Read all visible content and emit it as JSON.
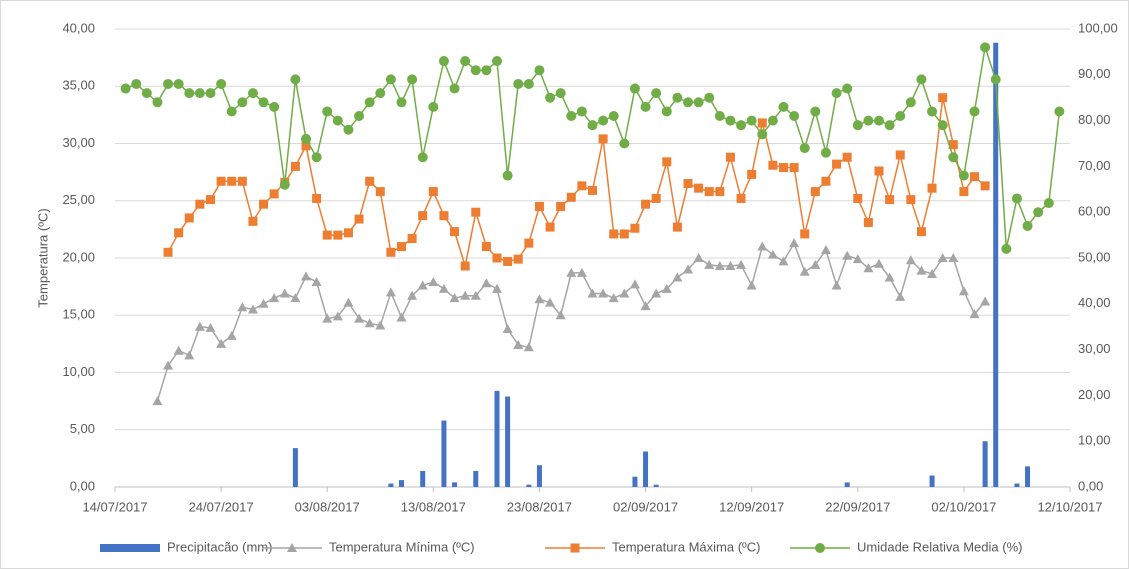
{
  "chart_data": {
    "type": "combo",
    "y_label": "Temperatura (ºC)",
    "x": [
      "14/07/2017",
      "15/07/2017",
      "16/07/2017",
      "17/07/2017",
      "18/07/2017",
      "19/07/2017",
      "20/07/2017",
      "21/07/2017",
      "22/07/2017",
      "23/07/2017",
      "24/07/2017",
      "25/07/2017",
      "26/07/2017",
      "27/07/2017",
      "28/07/2017",
      "29/07/2017",
      "30/07/2017",
      "31/07/2017",
      "01/08/2017",
      "02/08/2017",
      "03/08/2017",
      "04/08/2017",
      "05/08/2017",
      "06/08/2017",
      "07/08/2017",
      "08/08/2017",
      "09/08/2017",
      "10/08/2017",
      "11/08/2017",
      "12/08/2017",
      "13/08/2017",
      "14/08/2017",
      "15/08/2017",
      "16/08/2017",
      "17/08/2017",
      "18/08/2017",
      "19/08/2017",
      "20/08/2017",
      "21/08/2017",
      "22/08/2017",
      "23/08/2017",
      "24/08/2017",
      "25/08/2017",
      "26/08/2017",
      "27/08/2017",
      "28/08/2017",
      "29/08/2017",
      "30/08/2017",
      "31/08/2017",
      "01/09/2017",
      "02/09/2017",
      "03/09/2017",
      "04/09/2017",
      "05/09/2017",
      "06/09/2017",
      "07/09/2017",
      "08/09/2017",
      "09/09/2017",
      "10/09/2017",
      "11/09/2017",
      "12/09/2017",
      "13/09/2017",
      "14/09/2017",
      "15/09/2017",
      "16/09/2017",
      "17/09/2017",
      "18/09/2017",
      "19/09/2017",
      "20/09/2017",
      "21/09/2017",
      "22/09/2017",
      "23/09/2017",
      "24/09/2017",
      "25/09/2017",
      "26/09/2017",
      "27/09/2017",
      "28/09/2017",
      "29/09/2017",
      "30/09/2017",
      "01/10/2017",
      "02/10/2017",
      "03/10/2017",
      "04/10/2017",
      "05/10/2017",
      "06/10/2017",
      "07/10/2017",
      "08/10/2017",
      "09/10/2017",
      "10/10/2017",
      "11/10/2017",
      "12/10/2017"
    ],
    "xlim": [
      "14/07/2017",
      "12/10/2017"
    ],
    "xticks": [
      "14/07/2017",
      "24/07/2017",
      "03/08/2017",
      "13/08/2017",
      "23/08/2017",
      "02/09/2017",
      "12/09/2017",
      "22/09/2017",
      "02/10/2017",
      "12/10/2017"
    ],
    "ylim": [
      0,
      40
    ],
    "yticks": [
      {
        "value": 0,
        "label": "0,00"
      },
      {
        "value": 5,
        "label": "5,00"
      },
      {
        "value": 10,
        "label": "10,00"
      },
      {
        "value": 15,
        "label": "15,00"
      },
      {
        "value": 20,
        "label": "20,00"
      },
      {
        "value": 25,
        "label": "25,00"
      },
      {
        "value": 30,
        "label": "30,00"
      },
      {
        "value": 35,
        "label": "35,00"
      },
      {
        "value": 40,
        "label": "40,00"
      }
    ],
    "y2lim": [
      0,
      100
    ],
    "y2ticks": [
      {
        "value": 0,
        "label": "0,00"
      },
      {
        "value": 10,
        "label": "10,00"
      },
      {
        "value": 20,
        "label": "20,00"
      },
      {
        "value": 30,
        "label": "30,00"
      },
      {
        "value": 40,
        "label": "40,00"
      },
      {
        "value": 50,
        "label": "50,00"
      },
      {
        "value": 60,
        "label": "60,00"
      },
      {
        "value": 70,
        "label": "70,00"
      },
      {
        "value": 80,
        "label": "80,00"
      },
      {
        "value": 90,
        "label": "90,00"
      },
      {
        "value": 100,
        "label": "100,00"
      }
    ],
    "grid": true,
    "legend": "bottom",
    "series": [
      {
        "name": "Precipitacão (mm)",
        "type": "bar",
        "color": "#4472c4",
        "axis": "y",
        "values": [
          null,
          null,
          null,
          null,
          null,
          null,
          null,
          null,
          null,
          null,
          null,
          null,
          null,
          null,
          null,
          null,
          null,
          3.4,
          null,
          null,
          null,
          null,
          null,
          null,
          null,
          null,
          0.3,
          0.6,
          null,
          1.4,
          null,
          5.8,
          0.4,
          null,
          1.4,
          null,
          8.4,
          7.9,
          null,
          0.2,
          1.9,
          null,
          null,
          null,
          null,
          null,
          null,
          null,
          null,
          0.9,
          3.1,
          0.2,
          null,
          null,
          null,
          null,
          null,
          null,
          null,
          null,
          null,
          null,
          null,
          null,
          null,
          null,
          null,
          null,
          null,
          0.4,
          null,
          null,
          null,
          null,
          null,
          null,
          null,
          1.0,
          null,
          null,
          null,
          null,
          4.0,
          38.8,
          null,
          0.3,
          1.8,
          null,
          null,
          null,
          null
        ]
      },
      {
        "name": "Temperatura Mínima (ºC)",
        "type": "line",
        "marker": "triangle",
        "color": "#a5a5a5",
        "axis": "y",
        "values": [
          null,
          null,
          null,
          null,
          7.5,
          10.6,
          11.9,
          11.5,
          14.0,
          13.9,
          12.5,
          13.2,
          15.7,
          15.5,
          16.0,
          16.5,
          16.9,
          16.5,
          18.4,
          17.9,
          14.7,
          14.9,
          16.1,
          14.7,
          14.3,
          14.1,
          17.0,
          14.8,
          16.7,
          17.6,
          17.9,
          17.3,
          16.5,
          16.7,
          16.7,
          17.8,
          17.3,
          13.8,
          12.4,
          12.2,
          16.4,
          16.1,
          15.0,
          18.7,
          18.7,
          16.9,
          16.9,
          16.5,
          16.9,
          17.7,
          15.8,
          16.9,
          17.3,
          18.3,
          19.0,
          20.0,
          19.4,
          19.3,
          19.3,
          19.4,
          17.6,
          21.0,
          20.3,
          19.7,
          21.3,
          18.8,
          19.4,
          20.7,
          17.6,
          20.2,
          19.9,
          19.1,
          19.5,
          18.3,
          16.6,
          19.8,
          18.9,
          18.6,
          20.0,
          20.0,
          17.1,
          15.1,
          16.2,
          null,
          null,
          null,
          null,
          null,
          null,
          null,
          null
        ]
      },
      {
        "name": "Temperatura Máxima (ºC)",
        "type": "line",
        "marker": "square",
        "color": "#ed7d31",
        "axis": "y",
        "values": [
          null,
          null,
          null,
          null,
          null,
          20.5,
          22.2,
          23.5,
          24.7,
          25.1,
          26.7,
          26.7,
          26.7,
          23.2,
          24.7,
          25.6,
          26.6,
          28.0,
          29.8,
          25.2,
          22.0,
          22.0,
          22.2,
          23.4,
          26.7,
          25.8,
          20.5,
          21.0,
          21.7,
          23.7,
          25.8,
          23.7,
          22.3,
          19.3,
          24.0,
          21.0,
          20.0,
          19.7,
          19.9,
          21.3,
          24.5,
          22.7,
          24.5,
          25.3,
          26.3,
          25.9,
          30.4,
          22.1,
          22.1,
          22.6,
          24.7,
          25.2,
          28.4,
          22.7,
          26.5,
          26.1,
          25.8,
          25.8,
          28.8,
          25.2,
          27.3,
          31.8,
          28.1,
          27.9,
          27.9,
          22.1,
          25.8,
          26.7,
          28.2,
          28.8,
          25.2,
          23.1,
          27.6,
          25.1,
          29.0,
          25.1,
          22.3,
          26.1,
          34.0,
          29.9,
          25.8,
          27.1,
          26.3,
          null,
          null,
          null,
          null,
          null,
          null,
          null,
          null
        ]
      },
      {
        "name": "Umidade Relativa Media (%)",
        "type": "line",
        "marker": "circle",
        "color": "#70ad47",
        "axis": "y2",
        "values": [
          null,
          87,
          88,
          86,
          84,
          88,
          88,
          86,
          86,
          86,
          88,
          82,
          84,
          86,
          84,
          83,
          66,
          89,
          76,
          72,
          82,
          80,
          78,
          81,
          84,
          86,
          89,
          84,
          89,
          72,
          83,
          93,
          87,
          93,
          91,
          91,
          93,
          68,
          88,
          88,
          91,
          85,
          86,
          81,
          82,
          79,
          80,
          81,
          75,
          87,
          83,
          86,
          82,
          85,
          84,
          84,
          85,
          81,
          80,
          79,
          80,
          77,
          80,
          83,
          81,
          74,
          82,
          73,
          86,
          87,
          79,
          80,
          80,
          79,
          81,
          84,
          89,
          82,
          79,
          72,
          68,
          82,
          96,
          89,
          52,
          63,
          57,
          60,
          62,
          82,
          null
        ]
      }
    ]
  }
}
